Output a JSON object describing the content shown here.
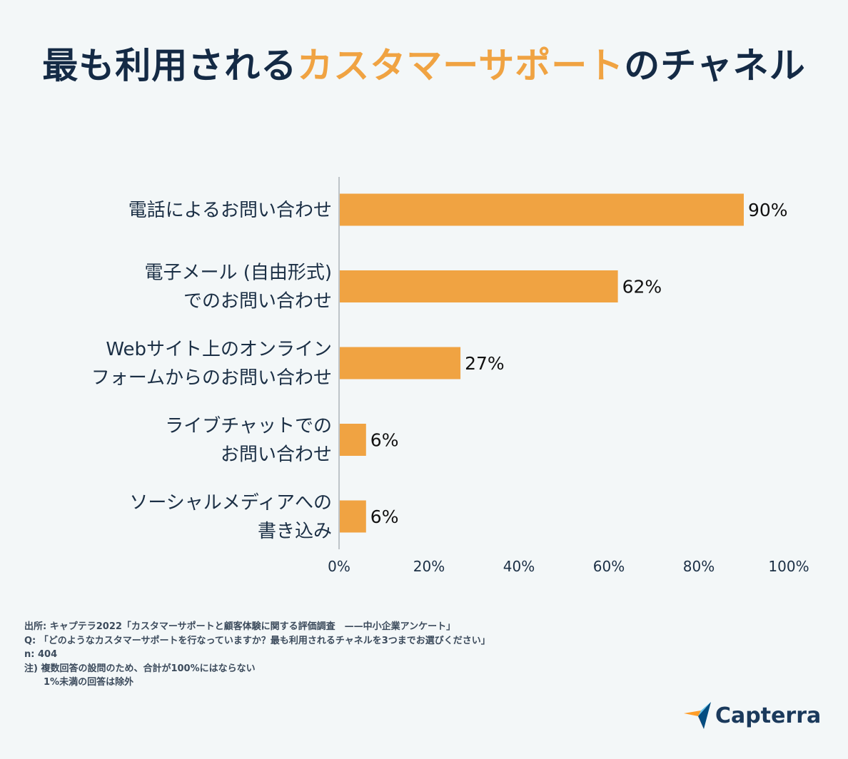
{
  "title": {
    "part1": "最も利用される",
    "part2": "カスタマーサポート",
    "part3": "のチャネル"
  },
  "colors": {
    "bar": "#f0a342",
    "accent": "#f0a342",
    "title": "#142a45",
    "axis": "#8a9098"
  },
  "chart_data": {
    "type": "bar",
    "orientation": "horizontal",
    "categories": [
      [
        "電話によるお問い合わせ"
      ],
      [
        "電子メール (自由形式)",
        "でのお問い合わせ"
      ],
      [
        "Webサイト上のオンライン",
        "フォームからのお問い合わせ"
      ],
      [
        "ライブチャットでの",
        "お問い合わせ"
      ],
      [
        "ソーシャルメディアへの",
        "書き込み"
      ]
    ],
    "values": [
      90,
      62,
      27,
      6,
      6
    ],
    "value_labels": [
      "90%",
      "62%",
      "27%",
      "6%",
      "6%"
    ],
    "x_ticks": [
      "0%",
      "20%",
      "40%",
      "60%",
      "80%",
      "100%"
    ],
    "xlim": [
      0,
      100
    ],
    "grid": false,
    "legend": "none"
  },
  "footnotes": {
    "source": "出所: キャプテラ2022「カスタマーサポートと顧客体験に関する評価調査　——中小企業アンケート」",
    "question": "Q: 「どのようなカスタマーサポートを行なっていますか？最も利用されるチャネルを3つまでお選びください」",
    "n": "n: 404",
    "note1": "注)  複数回答の設問のため、合計が100%にはならない",
    "note2": "1%未満の回答は除外"
  },
  "logo": {
    "text": "Capterra",
    "icon": "capterra-arrow-icon"
  }
}
